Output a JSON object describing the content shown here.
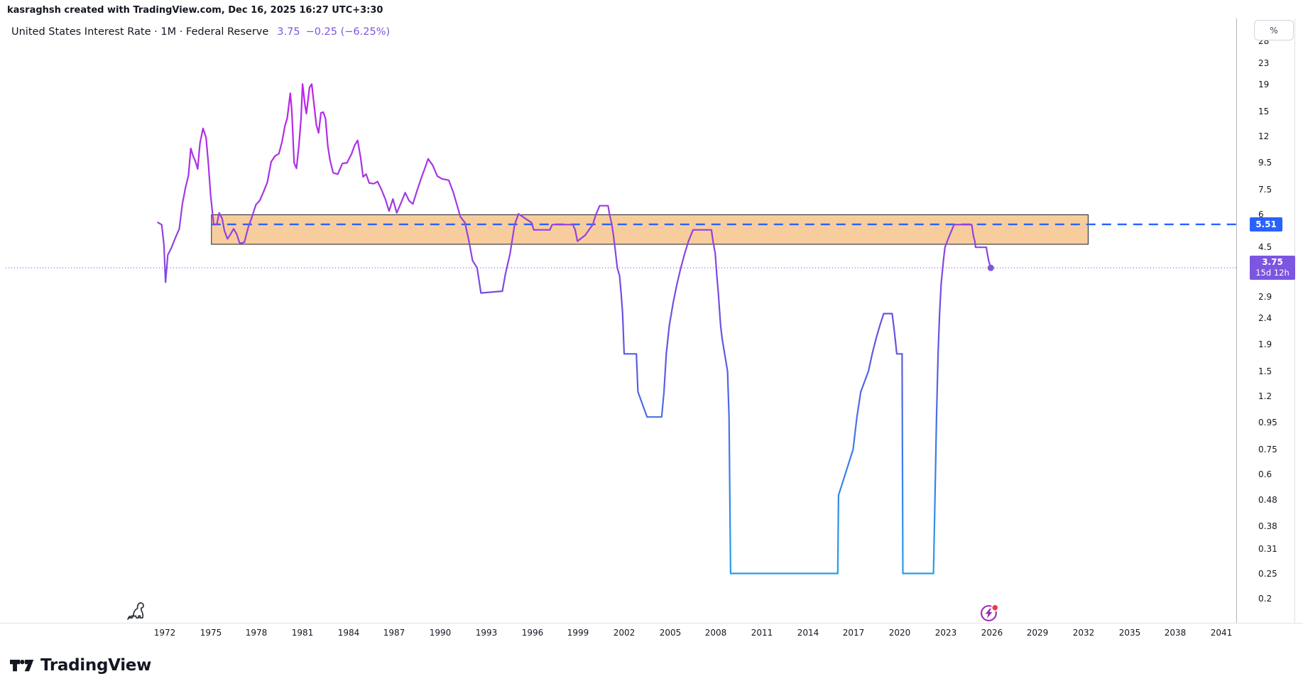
{
  "attribution": "kasraghsh created with TradingView.com, Dec 16, 2025 16:27 UTC+3:30",
  "header": {
    "title": "United States Interest Rate · 1M · Federal Reserve",
    "last": "3.75",
    "change": "−0.25 (−6.25%)"
  },
  "price_scale": {
    "unit_label": "%",
    "drawing_label": {
      "value": "5.51"
    },
    "current_label": {
      "value": "3.75",
      "countdown": "15d 12h"
    }
  },
  "logo": {
    "text": "TradingView"
  },
  "colors": {
    "text": "#131722",
    "accent_purple": "#7C55E0",
    "accent_blue": "#2962FF",
    "band_fill": "#F8CD9D",
    "band_border": "#1E1E1E",
    "event_purple": "#9C27B0",
    "red_dot": "#F23645",
    "line_gradient": [
      "#C81AEC",
      "#9A3FE0",
      "#6156E2",
      "#3A7FE8",
      "#1EA6EE"
    ]
  },
  "chart_data": {
    "type": "line",
    "title": "United States Interest Rate",
    "interval": "1M",
    "source": "Federal Reserve",
    "y_scale": "log",
    "grid": "off",
    "legend_position": "none",
    "y_ticks": [
      28,
      23,
      19,
      15,
      12,
      9.5,
      7.5,
      6,
      4.5,
      2.9,
      2.4,
      1.9,
      1.5,
      1.2,
      0.95,
      0.75,
      0.6,
      0.48,
      0.38,
      0.31,
      0.25,
      0.2
    ],
    "x_ticks": [
      1972,
      1975,
      1978,
      1981,
      1984,
      1987,
      1990,
      1993,
      1996,
      1999,
      2002,
      2005,
      2008,
      2011,
      2014,
      2017,
      2020,
      2023,
      2026,
      2029,
      2032,
      2035,
      2038,
      2041
    ],
    "x_range": [
      1971.3,
      2042.7
    ],
    "last_value": 3.75,
    "horizontal_line": {
      "value": 5.51,
      "style": "dashed"
    },
    "current_value_line": {
      "value": 3.75,
      "style": "dotted"
    },
    "highlight_band": {
      "x_start": 1975.05,
      "x_end": 2032.3,
      "y_top": 6.0,
      "y_bottom": 4.62
    },
    "series": [
      {
        "name": "United States Interest Rate",
        "points": [
          [
            1971.55,
            5.6
          ],
          [
            1971.8,
            5.5
          ],
          [
            1971.95,
            4.6
          ],
          [
            1972.05,
            3.3
          ],
          [
            1972.2,
            4.2
          ],
          [
            1972.45,
            4.5
          ],
          [
            1972.7,
            4.9
          ],
          [
            1972.95,
            5.3
          ],
          [
            1973.15,
            6.6
          ],
          [
            1973.35,
            7.6
          ],
          [
            1973.55,
            8.5
          ],
          [
            1973.7,
            10.8
          ],
          [
            1973.85,
            10.1
          ],
          [
            1974.0,
            9.65
          ],
          [
            1974.15,
            9.0
          ],
          [
            1974.3,
            11.3
          ],
          [
            1974.5,
            12.9
          ],
          [
            1974.7,
            11.9
          ],
          [
            1974.85,
            9.4
          ],
          [
            1975.0,
            7.1
          ],
          [
            1975.2,
            5.5
          ],
          [
            1975.4,
            5.5
          ],
          [
            1975.55,
            6.1
          ],
          [
            1975.75,
            5.8
          ],
          [
            1975.9,
            5.2
          ],
          [
            1976.1,
            4.85
          ],
          [
            1976.3,
            5.05
          ],
          [
            1976.5,
            5.3
          ],
          [
            1976.7,
            5.05
          ],
          [
            1976.9,
            4.65
          ],
          [
            1977.2,
            4.7
          ],
          [
            1977.45,
            5.35
          ],
          [
            1977.7,
            5.9
          ],
          [
            1977.95,
            6.55
          ],
          [
            1978.2,
            6.8
          ],
          [
            1978.45,
            7.35
          ],
          [
            1978.7,
            8.0
          ],
          [
            1978.95,
            9.6
          ],
          [
            1979.2,
            10.1
          ],
          [
            1979.45,
            10.3
          ],
          [
            1979.65,
            11.4
          ],
          [
            1979.85,
            13.2
          ],
          [
            1980.0,
            14.1
          ],
          [
            1980.2,
            17.6
          ],
          [
            1980.3,
            15.0
          ],
          [
            1980.45,
            9.5
          ],
          [
            1980.6,
            9.05
          ],
          [
            1980.75,
            10.9
          ],
          [
            1980.9,
            14.0
          ],
          [
            1981.0,
            19.1
          ],
          [
            1981.15,
            16.0
          ],
          [
            1981.25,
            14.7
          ],
          [
            1981.45,
            18.5
          ],
          [
            1981.6,
            19.1
          ],
          [
            1981.75,
            15.9
          ],
          [
            1981.9,
            13.3
          ],
          [
            1982.05,
            12.4
          ],
          [
            1982.2,
            14.8
          ],
          [
            1982.35,
            14.9
          ],
          [
            1982.5,
            14.1
          ],
          [
            1982.65,
            11.0
          ],
          [
            1982.8,
            9.7
          ],
          [
            1983.0,
            8.7
          ],
          [
            1983.3,
            8.6
          ],
          [
            1983.6,
            9.45
          ],
          [
            1983.9,
            9.5
          ],
          [
            1984.2,
            10.3
          ],
          [
            1984.4,
            11.1
          ],
          [
            1984.6,
            11.6
          ],
          [
            1984.8,
            9.9
          ],
          [
            1984.95,
            8.4
          ],
          [
            1985.15,
            8.6
          ],
          [
            1985.35,
            7.95
          ],
          [
            1985.65,
            7.9
          ],
          [
            1985.9,
            8.05
          ],
          [
            1986.15,
            7.5
          ],
          [
            1986.4,
            6.9
          ],
          [
            1986.65,
            6.2
          ],
          [
            1986.9,
            6.9
          ],
          [
            1987.15,
            6.1
          ],
          [
            1987.4,
            6.6
          ],
          [
            1987.7,
            7.3
          ],
          [
            1987.95,
            6.8
          ],
          [
            1988.2,
            6.6
          ],
          [
            1988.5,
            7.5
          ],
          [
            1988.75,
            8.3
          ],
          [
            1989.0,
            9.1
          ],
          [
            1989.2,
            9.85
          ],
          [
            1989.5,
            9.3
          ],
          [
            1989.8,
            8.45
          ],
          [
            1990.1,
            8.25
          ],
          [
            1990.55,
            8.15
          ],
          [
            1990.85,
            7.3
          ],
          [
            1991.1,
            6.5
          ],
          [
            1991.3,
            5.9
          ],
          [
            1991.6,
            5.6
          ],
          [
            1991.85,
            4.8
          ],
          [
            1992.1,
            4.0
          ],
          [
            1992.4,
            3.75
          ],
          [
            1992.65,
            3.0
          ],
          [
            1994.05,
            3.05
          ],
          [
            1994.25,
            3.55
          ],
          [
            1994.55,
            4.25
          ],
          [
            1994.85,
            5.5
          ],
          [
            1995.1,
            6.05
          ],
          [
            1995.55,
            5.8
          ],
          [
            1995.95,
            5.6
          ],
          [
            1996.1,
            5.25
          ],
          [
            1997.15,
            5.25
          ],
          [
            1997.3,
            5.5
          ],
          [
            1998.65,
            5.5
          ],
          [
            1998.8,
            5.25
          ],
          [
            1998.95,
            4.75
          ],
          [
            1999.45,
            5.0
          ],
          [
            1999.7,
            5.25
          ],
          [
            1999.95,
            5.5
          ],
          [
            2000.15,
            6.0
          ],
          [
            2000.4,
            6.5
          ],
          [
            2000.95,
            6.5
          ],
          [
            2001.05,
            6.0
          ],
          [
            2001.2,
            5.5
          ],
          [
            2001.3,
            5.0
          ],
          [
            2001.4,
            4.5
          ],
          [
            2001.55,
            3.75
          ],
          [
            2001.7,
            3.5
          ],
          [
            2001.8,
            3.0
          ],
          [
            2001.9,
            2.5
          ],
          [
            2002.0,
            1.75
          ],
          [
            2002.8,
            1.75
          ],
          [
            2002.9,
            1.25
          ],
          [
            2003.5,
            1.0
          ],
          [
            2004.45,
            1.0
          ],
          [
            2004.6,
            1.25
          ],
          [
            2004.75,
            1.75
          ],
          [
            2004.95,
            2.25
          ],
          [
            2005.2,
            2.75
          ],
          [
            2005.45,
            3.25
          ],
          [
            2005.7,
            3.75
          ],
          [
            2005.95,
            4.25
          ],
          [
            2006.2,
            4.75
          ],
          [
            2006.5,
            5.25
          ],
          [
            2007.7,
            5.25
          ],
          [
            2007.8,
            4.75
          ],
          [
            2007.95,
            4.25
          ],
          [
            2008.05,
            3.5
          ],
          [
            2008.15,
            3.0
          ],
          [
            2008.3,
            2.25
          ],
          [
            2008.4,
            2.0
          ],
          [
            2008.75,
            1.5
          ],
          [
            2008.85,
            1.0
          ],
          [
            2008.95,
            0.25
          ],
          [
            2015.95,
            0.25
          ],
          [
            2016.0,
            0.5
          ],
          [
            2016.95,
            0.75
          ],
          [
            2017.2,
            1.0
          ],
          [
            2017.45,
            1.25
          ],
          [
            2017.95,
            1.5
          ],
          [
            2018.2,
            1.75
          ],
          [
            2018.45,
            2.0
          ],
          [
            2018.7,
            2.25
          ],
          [
            2018.95,
            2.5
          ],
          [
            2019.5,
            2.5
          ],
          [
            2019.6,
            2.25
          ],
          [
            2019.7,
            2.0
          ],
          [
            2019.8,
            1.75
          ],
          [
            2020.15,
            1.75
          ],
          [
            2020.2,
            0.25
          ],
          [
            2022.2,
            0.25
          ],
          [
            2022.3,
            0.5
          ],
          [
            2022.4,
            1.0
          ],
          [
            2022.5,
            1.75
          ],
          [
            2022.6,
            2.5
          ],
          [
            2022.7,
            3.25
          ],
          [
            2022.85,
            4.0
          ],
          [
            2022.95,
            4.5
          ],
          [
            2023.1,
            4.75
          ],
          [
            2023.25,
            5.0
          ],
          [
            2023.4,
            5.25
          ],
          [
            2023.55,
            5.5
          ],
          [
            2024.7,
            5.5
          ],
          [
            2024.8,
            5.0
          ],
          [
            2024.9,
            4.75
          ],
          [
            2024.95,
            4.5
          ],
          [
            2025.65,
            4.5
          ],
          [
            2025.72,
            4.25
          ],
          [
            2025.8,
            4.0
          ],
          [
            2025.94,
            3.75
          ]
        ]
      }
    ]
  }
}
